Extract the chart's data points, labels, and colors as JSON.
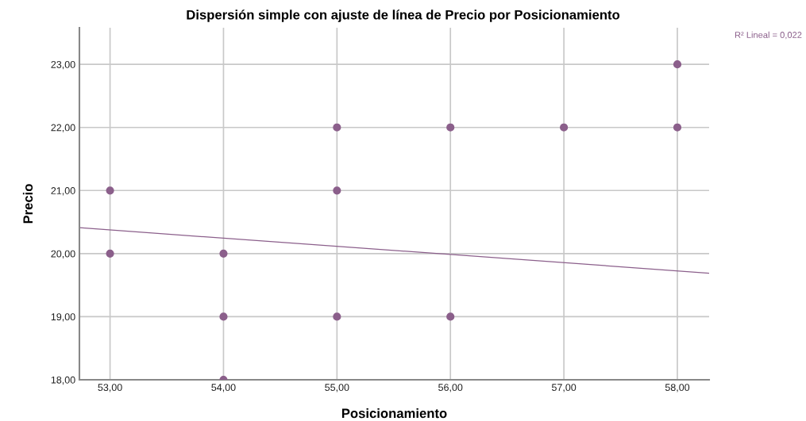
{
  "chart_data": {
    "type": "scatter",
    "title": "Dispersión simple con ajuste de línea de Precio por Posicionamiento",
    "xlabel": "Posicionamiento",
    "ylabel": "Precio",
    "annotations": [
      "R² Lineal = 0,022"
    ],
    "series": [
      {
        "color": "#8b5f8b",
        "marker": "circle",
        "x": [
          53,
          53,
          54,
          54,
          54,
          55,
          55,
          55,
          56,
          56,
          57,
          58,
          58
        ],
        "values": [
          21,
          20,
          20,
          19,
          18,
          22,
          21,
          19,
          22,
          19,
          22,
          23,
          22
        ]
      },
      {
        "type": "line",
        "marker": "none",
        "color": "#8b5f8b",
        "x": [
          52.73,
          58.28
        ],
        "values": [
          20.41,
          19.69
        ]
      }
    ],
    "xlim": [
      52.73,
      58.28
    ],
    "ylim": [
      18,
      23.58
    ],
    "xticks": [
      {
        "value": 53,
        "label": "53,00"
      },
      {
        "value": 54,
        "label": "54,00"
      },
      {
        "value": 55,
        "label": "55,00"
      },
      {
        "value": 56,
        "label": "56,00"
      },
      {
        "value": 57,
        "label": "57,00"
      },
      {
        "value": 58,
        "label": "58,00"
      }
    ],
    "yticks": [
      {
        "value": 18,
        "label": "18,00"
      },
      {
        "value": 19,
        "label": "19,00"
      },
      {
        "value": 20,
        "label": "20,00"
      },
      {
        "value": 21,
        "label": "21,00"
      },
      {
        "value": 22,
        "label": "22,00"
      },
      {
        "value": 23,
        "label": "23,00"
      }
    ],
    "grid": true,
    "legend": false
  }
}
